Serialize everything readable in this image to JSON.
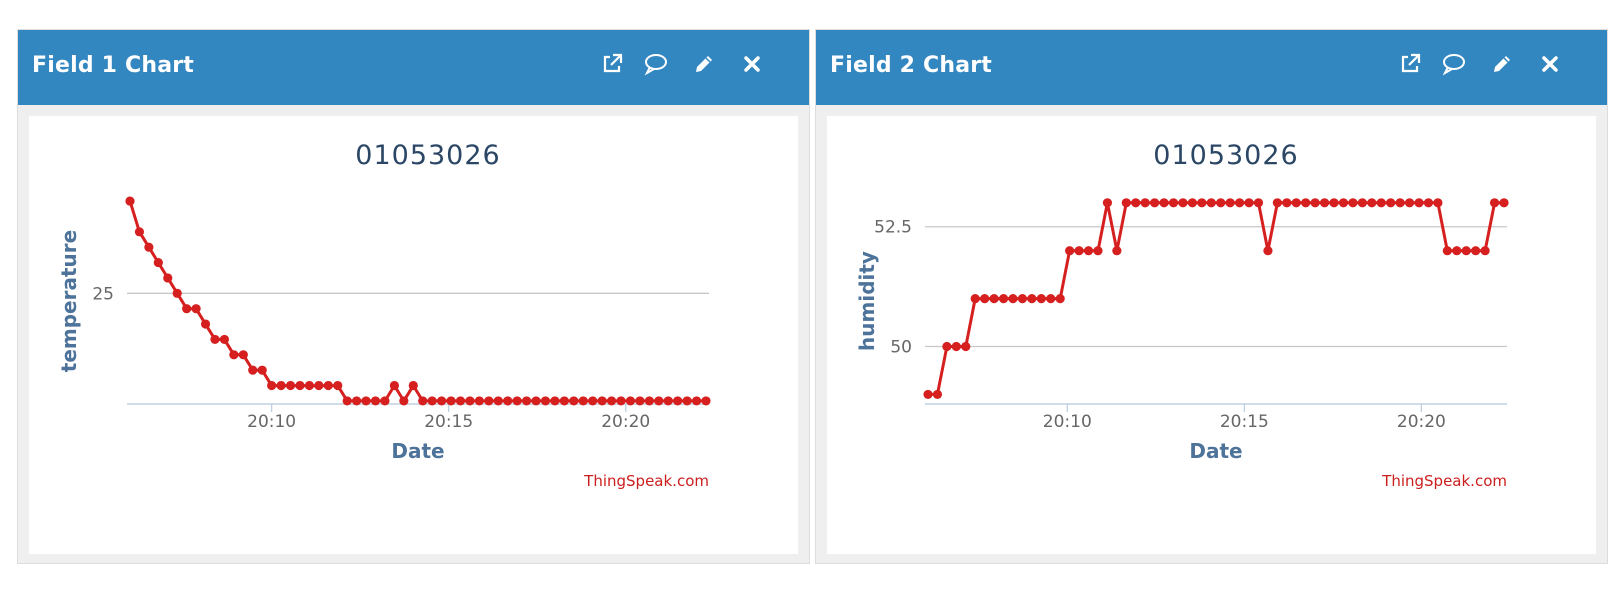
{
  "panels": [
    {
      "header": {
        "title": "Field 1 Chart"
      },
      "toolbar": [
        "external-link-icon",
        "comment-icon",
        "pencil-icon",
        "close-icon"
      ],
      "chart_data": {
        "type": "line",
        "title": "01053026",
        "xlabel": "Date",
        "ylabel": "temperature",
        "credit": "ThingSpeak.com",
        "x_ticks": [
          "20:10",
          "20:15",
          "20:20"
        ],
        "y_ticks": [
          25
        ],
        "ylim": [
          23.2,
          26.55
        ],
        "grid": true,
        "legend": "none",
        "series": [
          {
            "color": "#d62020",
            "points": [
              [
                "20:06:00",
                26.5
              ],
              [
                "20:06:16",
                26.0
              ],
              [
                "20:06:32",
                25.75
              ],
              [
                "20:06:48",
                25.5
              ],
              [
                "20:07:04",
                25.25
              ],
              [
                "20:07:20",
                25.0
              ],
              [
                "20:07:36",
                24.75
              ],
              [
                "20:07:52",
                24.75
              ],
              [
                "20:08:08",
                24.5
              ],
              [
                "20:08:24",
                24.25
              ],
              [
                "20:08:40",
                24.25
              ],
              [
                "20:08:56",
                24.0
              ],
              [
                "20:09:12",
                24.0
              ],
              [
                "20:09:28",
                23.75
              ],
              [
                "20:09:44",
                23.75
              ],
              [
                "20:10:00",
                23.5
              ],
              [
                "20:10:16",
                23.5
              ],
              [
                "20:10:32",
                23.5
              ],
              [
                "20:10:48",
                23.5
              ],
              [
                "20:11:04",
                23.5
              ],
              [
                "20:11:20",
                23.5
              ],
              [
                "20:11:36",
                23.5
              ],
              [
                "20:11:52",
                23.5
              ],
              [
                "20:12:08",
                23.25
              ],
              [
                "20:12:24",
                23.25
              ],
              [
                "20:12:40",
                23.25
              ],
              [
                "20:12:56",
                23.25
              ],
              [
                "20:13:12",
                23.25
              ],
              [
                "20:13:28",
                23.5
              ],
              [
                "20:13:44",
                23.25
              ],
              [
                "20:14:00",
                23.5
              ],
              [
                "20:14:16",
                23.25
              ],
              [
                "20:14:32",
                23.25
              ],
              [
                "20:14:48",
                23.25
              ],
              [
                "20:15:04",
                23.25
              ],
              [
                "20:15:20",
                23.25
              ],
              [
                "20:15:36",
                23.25
              ],
              [
                "20:15:52",
                23.25
              ],
              [
                "20:16:08",
                23.25
              ],
              [
                "20:16:24",
                23.25
              ],
              [
                "20:16:40",
                23.25
              ],
              [
                "20:16:56",
                23.25
              ],
              [
                "20:17:12",
                23.25
              ],
              [
                "20:17:28",
                23.25
              ],
              [
                "20:17:44",
                23.25
              ],
              [
                "20:18:00",
                23.25
              ],
              [
                "20:18:16",
                23.25
              ],
              [
                "20:18:32",
                23.25
              ],
              [
                "20:18:48",
                23.25
              ],
              [
                "20:19:04",
                23.25
              ],
              [
                "20:19:20",
                23.25
              ],
              [
                "20:19:36",
                23.25
              ],
              [
                "20:19:52",
                23.25
              ],
              [
                "20:20:08",
                23.25
              ],
              [
                "20:20:24",
                23.25
              ],
              [
                "20:20:40",
                23.25
              ],
              [
                "20:20:56",
                23.25
              ],
              [
                "20:21:12",
                23.25
              ],
              [
                "20:21:28",
                23.25
              ],
              [
                "20:21:44",
                23.25
              ],
              [
                "20:22:00",
                23.25
              ],
              [
                "20:22:16",
                23.25
              ]
            ]
          }
        ]
      }
    },
    {
      "header": {
        "title": "Field 2 Chart"
      },
      "toolbar": [
        "external-link-icon",
        "comment-icon",
        "pencil-icon",
        "close-icon"
      ],
      "chart_data": {
        "type": "line",
        "title": "01053026",
        "xlabel": "Date",
        "ylabel": "humidity",
        "credit": "ThingSpeak.com",
        "x_ticks": [
          "20:10",
          "20:15",
          "20:20"
        ],
        "y_ticks": [
          50,
          52.5
        ],
        "ylim": [
          48.8,
          53.1
        ],
        "grid": true,
        "legend": "none",
        "series": [
          {
            "color": "#d62020",
            "points": [
              [
                "20:06:04",
                49.0
              ],
              [
                "20:06:20",
                49.0
              ],
              [
                "20:06:36",
                50.0
              ],
              [
                "20:06:52",
                50.0
              ],
              [
                "20:07:08",
                50.0
              ],
              [
                "20:07:24",
                51.0
              ],
              [
                "20:07:40",
                51.0
              ],
              [
                "20:07:56",
                51.0
              ],
              [
                "20:08:12",
                51.0
              ],
              [
                "20:08:28",
                51.0
              ],
              [
                "20:08:44",
                51.0
              ],
              [
                "20:09:00",
                51.0
              ],
              [
                "20:09:16",
                51.0
              ],
              [
                "20:09:32",
                51.0
              ],
              [
                "20:09:48",
                51.0
              ],
              [
                "20:10:04",
                52.0
              ],
              [
                "20:10:20",
                52.0
              ],
              [
                "20:10:36",
                52.0
              ],
              [
                "20:10:52",
                52.0
              ],
              [
                "20:11:08",
                53.0
              ],
              [
                "20:11:24",
                52.0
              ],
              [
                "20:11:40",
                53.0
              ],
              [
                "20:11:56",
                53.0
              ],
              [
                "20:12:12",
                53.0
              ],
              [
                "20:12:28",
                53.0
              ],
              [
                "20:12:44",
                53.0
              ],
              [
                "20:13:00",
                53.0
              ],
              [
                "20:13:16",
                53.0
              ],
              [
                "20:13:32",
                53.0
              ],
              [
                "20:13:48",
                53.0
              ],
              [
                "20:14:04",
                53.0
              ],
              [
                "20:14:20",
                53.0
              ],
              [
                "20:14:36",
                53.0
              ],
              [
                "20:14:52",
                53.0
              ],
              [
                "20:15:08",
                53.0
              ],
              [
                "20:15:24",
                53.0
              ],
              [
                "20:15:40",
                52.0
              ],
              [
                "20:15:56",
                53.0
              ],
              [
                "20:16:12",
                53.0
              ],
              [
                "20:16:28",
                53.0
              ],
              [
                "20:16:44",
                53.0
              ],
              [
                "20:17:00",
                53.0
              ],
              [
                "20:17:16",
                53.0
              ],
              [
                "20:17:32",
                53.0
              ],
              [
                "20:17:48",
                53.0
              ],
              [
                "20:18:04",
                53.0
              ],
              [
                "20:18:20",
                53.0
              ],
              [
                "20:18:36",
                53.0
              ],
              [
                "20:18:52",
                53.0
              ],
              [
                "20:19:08",
                53.0
              ],
              [
                "20:19:24",
                53.0
              ],
              [
                "20:19:40",
                53.0
              ],
              [
                "20:19:56",
                53.0
              ],
              [
                "20:20:12",
                53.0
              ],
              [
                "20:20:28",
                53.0
              ],
              [
                "20:20:44",
                52.0
              ],
              [
                "20:21:00",
                52.0
              ],
              [
                "20:21:16",
                52.0
              ],
              [
                "20:21:32",
                52.0
              ],
              [
                "20:21:48",
                52.0
              ],
              [
                "20:22:04",
                53.0
              ],
              [
                "20:22:20",
                53.0
              ]
            ]
          }
        ]
      }
    }
  ]
}
